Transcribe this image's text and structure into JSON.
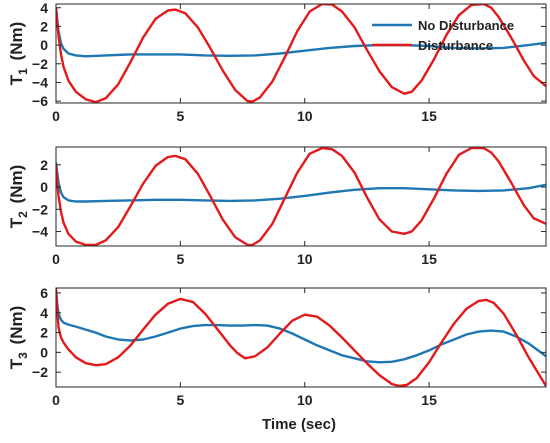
{
  "chart_data": [
    {
      "type": "line",
      "ylabel": "T",
      "ylabel_sub": "1",
      "ylabel_unit": "(Nm)",
      "xlim": [
        0,
        19.7
      ],
      "ylim": [
        -6.2,
        4.4
      ],
      "xticks": [
        0,
        5,
        10,
        15
      ],
      "yticks": [
        4,
        2,
        0,
        -2,
        -4,
        -6
      ],
      "legend": {
        "placement": "top-right",
        "entries": [
          "No Disturbance",
          "Disturbance"
        ]
      },
      "series": [
        {
          "name": "No Disturbance",
          "color": "#1f77b4",
          "x": [
            0,
            0.05,
            0.1,
            0.2,
            0.3,
            0.5,
            0.8,
            1.2,
            2,
            3,
            4,
            5,
            6,
            7,
            8,
            9,
            10,
            11,
            12,
            13,
            14,
            15,
            16,
            17,
            18,
            19,
            19.7
          ],
          "y": [
            4.0,
            2.8,
            1.5,
            0.2,
            -0.4,
            -0.9,
            -1.1,
            -1.2,
            -1.1,
            -1.0,
            -1.0,
            -1.0,
            -1.1,
            -1.15,
            -1.1,
            -0.9,
            -0.6,
            -0.3,
            -0.1,
            0.0,
            0.0,
            -0.1,
            -0.3,
            -0.35,
            -0.3,
            0.0,
            0.25
          ]
        },
        {
          "name": "Disturbance",
          "color": "#e31a1c",
          "x": [
            0,
            0.05,
            0.1,
            0.2,
            0.3,
            0.5,
            0.8,
            1.2,
            1.6,
            2,
            2.5,
            3,
            3.5,
            4,
            4.5,
            4.8,
            5.2,
            5.7,
            6.2,
            6.7,
            7.2,
            7.7,
            7.9,
            8.2,
            8.7,
            9.2,
            9.7,
            10.2,
            10.7,
            11.1,
            11.5,
            12,
            12.5,
            13,
            13.5,
            14,
            14.3,
            14.7,
            15.2,
            15.7,
            16.2,
            16.7,
            17.2,
            17.5,
            17.8,
            18.3,
            18.8,
            19.2,
            19.7
          ],
          "y": [
            4.0,
            2.5,
            1.0,
            -1.0,
            -2.3,
            -3.8,
            -5.0,
            -5.8,
            -6.1,
            -5.7,
            -4.2,
            -1.8,
            0.8,
            2.8,
            3.7,
            3.8,
            3.4,
            1.9,
            -0.3,
            -2.7,
            -4.8,
            -6.0,
            -6.05,
            -5.6,
            -3.9,
            -1.3,
            1.5,
            3.6,
            4.4,
            4.35,
            3.6,
            1.9,
            -0.5,
            -2.8,
            -4.5,
            -5.2,
            -5.0,
            -3.8,
            -1.5,
            1.1,
            3.2,
            4.3,
            4.4,
            4.0,
            3.0,
            0.8,
            -1.6,
            -3.3,
            -4.4
          ]
        }
      ]
    },
    {
      "type": "line",
      "ylabel": "T",
      "ylabel_sub": "2",
      "ylabel_unit": "(Nm)",
      "xlim": [
        0,
        19.7
      ],
      "ylim": [
        -5.3,
        3.6
      ],
      "xticks": [
        0,
        5,
        10,
        15
      ],
      "yticks": [
        2,
        0,
        -2,
        -4
      ],
      "series": [
        {
          "name": "No Disturbance",
          "color": "#1f77b4",
          "x": [
            0,
            0.05,
            0.1,
            0.2,
            0.3,
            0.5,
            0.8,
            1.2,
            2,
            3,
            4,
            5,
            6,
            7,
            8,
            9,
            10,
            11,
            12,
            13,
            14,
            15,
            16,
            17,
            18,
            19,
            19.7
          ],
          "y": [
            2.2,
            1.3,
            0.4,
            -0.5,
            -0.9,
            -1.2,
            -1.3,
            -1.3,
            -1.25,
            -1.2,
            -1.15,
            -1.15,
            -1.2,
            -1.25,
            -1.2,
            -1.05,
            -0.8,
            -0.5,
            -0.25,
            -0.1,
            -0.1,
            -0.2,
            -0.3,
            -0.35,
            -0.3,
            -0.1,
            0.2
          ]
        },
        {
          "name": "Disturbance",
          "color": "#e31a1c",
          "x": [
            0,
            0.05,
            0.1,
            0.2,
            0.3,
            0.5,
            0.8,
            1.2,
            1.6,
            2,
            2.5,
            3,
            3.5,
            4,
            4.5,
            4.8,
            5.2,
            5.7,
            6.2,
            6.7,
            7.2,
            7.7,
            7.9,
            8.2,
            8.7,
            9.2,
            9.7,
            10.2,
            10.7,
            11.1,
            11.5,
            12,
            12.5,
            13,
            13.5,
            14,
            14.3,
            14.7,
            15.2,
            15.7,
            16.2,
            16.7,
            17.2,
            17.5,
            17.8,
            18.3,
            18.8,
            19.2,
            19.7
          ],
          "y": [
            2.0,
            0.5,
            -0.8,
            -2.2,
            -3.2,
            -4.2,
            -4.9,
            -5.2,
            -5.2,
            -4.8,
            -3.6,
            -1.7,
            0.3,
            1.9,
            2.7,
            2.8,
            2.5,
            1.2,
            -0.8,
            -2.9,
            -4.5,
            -5.2,
            -5.2,
            -4.8,
            -3.3,
            -1.0,
            1.3,
            3.0,
            3.5,
            3.4,
            2.8,
            1.3,
            -0.9,
            -2.9,
            -4.0,
            -4.2,
            -4.0,
            -3.0,
            -1.0,
            1.2,
            2.9,
            3.5,
            3.5,
            3.1,
            2.3,
            0.4,
            -1.6,
            -2.8,
            -3.3
          ]
        }
      ]
    },
    {
      "type": "line",
      "ylabel": "T",
      "ylabel_sub": "3",
      "ylabel_unit": "(Nm)",
      "xlabel": "Time (sec)",
      "xlim": [
        0,
        19.7
      ],
      "ylim": [
        -3.5,
        6.5
      ],
      "xticks": [
        0,
        5,
        10,
        15
      ],
      "yticks": [
        6,
        4,
        2,
        0,
        -2
      ],
      "series": [
        {
          "name": "No Disturbance",
          "color": "#1f77b4",
          "x": [
            0,
            0.05,
            0.1,
            0.2,
            0.3,
            0.5,
            0.8,
            1.2,
            1.6,
            2,
            2.5,
            3,
            3.5,
            4,
            4.5,
            5,
            5.5,
            6,
            6.5,
            7,
            7.5,
            8,
            8.5,
            9,
            9.5,
            10,
            10.5,
            11,
            11.5,
            12,
            12.5,
            13,
            13.5,
            14,
            14.5,
            15,
            15.5,
            16,
            16.5,
            17,
            17.5,
            18,
            18.5,
            19,
            19.7
          ],
          "y": [
            6.2,
            4.9,
            3.9,
            3.3,
            3.0,
            2.8,
            2.6,
            2.3,
            2.0,
            1.6,
            1.3,
            1.2,
            1.3,
            1.6,
            2.0,
            2.4,
            2.65,
            2.75,
            2.75,
            2.7,
            2.7,
            2.75,
            2.7,
            2.4,
            1.9,
            1.3,
            0.7,
            0.2,
            -0.3,
            -0.6,
            -0.9,
            -1.0,
            -0.95,
            -0.7,
            -0.3,
            0.2,
            0.8,
            1.3,
            1.8,
            2.1,
            2.2,
            2.1,
            1.6,
            0.9,
            -0.4
          ]
        },
        {
          "name": "Disturbance",
          "color": "#e31a1c",
          "x": [
            0,
            0.05,
            0.1,
            0.2,
            0.3,
            0.5,
            0.8,
            1.2,
            1.6,
            2,
            2.5,
            3,
            3.5,
            4,
            4.5,
            5,
            5.5,
            6,
            6.5,
            7,
            7.3,
            7.6,
            8,
            8.5,
            9,
            9.5,
            10,
            10.5,
            11,
            11.5,
            12,
            12.5,
            13,
            13.5,
            13.8,
            14.1,
            14.5,
            15,
            15.5,
            16,
            16.5,
            17,
            17.3,
            17.6,
            18,
            18.5,
            19,
            19.7
          ],
          "y": [
            6.5,
            4.5,
            2.5,
            1.5,
            1.0,
            0.3,
            -0.5,
            -1.1,
            -1.3,
            -1.2,
            -0.5,
            0.7,
            2.3,
            3.8,
            4.9,
            5.4,
            5.1,
            3.9,
            2.3,
            0.7,
            -0.1,
            -0.6,
            -0.4,
            0.5,
            1.9,
            3.2,
            3.8,
            3.6,
            2.7,
            1.5,
            0.2,
            -1.1,
            -2.3,
            -3.2,
            -3.4,
            -3.3,
            -2.6,
            -1.0,
            1.0,
            2.9,
            4.4,
            5.2,
            5.3,
            5.0,
            3.9,
            1.8,
            -0.5,
            -3.4
          ]
        }
      ]
    }
  ]
}
